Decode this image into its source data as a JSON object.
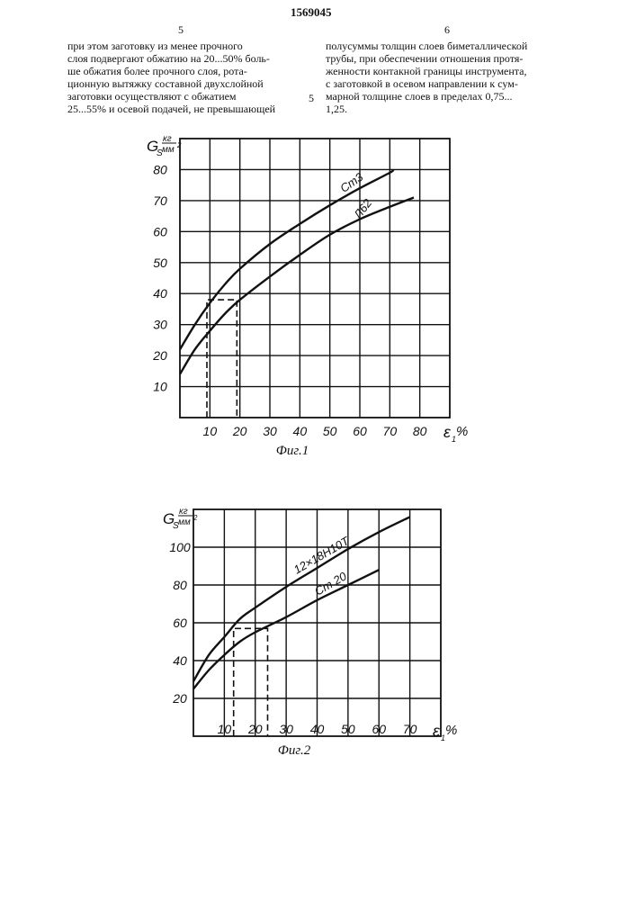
{
  "header": {
    "page_left": "5",
    "patent_number": "1569045",
    "page_right": "6"
  },
  "text": {
    "left_column": [
      "при этом заготовку из менее прочного",
      "слоя подвергают обжатию на 20...50% боль-",
      "ше обжатия более прочного слоя, рота-",
      "ционную вытяжку составной двухслойной",
      "заготовки осуществляют с обжатием",
      "25...55% и осевой подачей, не превышающей"
    ],
    "right_column": [
      "полусуммы толщин слоев биметаллической",
      "трубы, при обеспечении отношения протя-",
      "женности контакной границы инструмента,",
      "с заготовкой в осевом направлении к сум-",
      "марной толщине слоев в пределах 0,75...",
      "1,25."
    ],
    "line_number": "5"
  },
  "chart_data": [
    {
      "type": "line",
      "title": "Фиг.1",
      "ylabel": "G_s, кг/мм²",
      "xlabel": "ε, %",
      "xlim": [
        0,
        90
      ],
      "ylim": [
        0,
        90
      ],
      "grid": true,
      "x_ticks": [
        10,
        20,
        30,
        40,
        50,
        60,
        70,
        80
      ],
      "y_ticks": [
        10,
        20,
        30,
        40,
        50,
        60,
        70,
        80
      ],
      "series": [
        {
          "name": "Ст3",
          "x": [
            0,
            5,
            10,
            15,
            20,
            30,
            40,
            50,
            60,
            70,
            71
          ],
          "y": [
            22,
            30,
            37,
            43,
            48,
            56,
            62.5,
            68.5,
            74,
            79,
            80
          ]
        },
        {
          "name": "Л62",
          "x": [
            0,
            5,
            10,
            15,
            20,
            30,
            40,
            50,
            60,
            70,
            78
          ],
          "y": [
            14,
            22,
            28,
            33.5,
            38,
            45.5,
            52.5,
            59,
            64,
            68,
            71
          ]
        }
      ],
      "guide": {
        "x": [
          9,
          19
        ],
        "y": 38
      },
      "label_text": {
        "y_symbol": "G",
        "y_sub": "S",
        "y_unit_num": "кг",
        "y_unit_den": "мм",
        "y_unit_exp": "2",
        "x_symbol": "ε",
        "x_sub": "1",
        "x_unit": "%"
      }
    },
    {
      "type": "line",
      "title": "Фиг.2",
      "ylabel": "G_s, кг/мм²",
      "xlabel": "ε, %",
      "xlim": [
        0,
        80
      ],
      "ylim": [
        0,
        120
      ],
      "grid": true,
      "x_ticks": [
        10,
        20,
        30,
        40,
        50,
        60,
        70
      ],
      "y_ticks": [
        20,
        40,
        60,
        80,
        100
      ],
      "series": [
        {
          "name": "12×18Н10Т",
          "x": [
            0,
            5,
            10,
            15,
            20,
            30,
            40,
            50,
            60,
            70
          ],
          "y": [
            29,
            43,
            52.5,
            62,
            68,
            79,
            89,
            99,
            108,
            116
          ]
        },
        {
          "name": "Ст 20",
          "x": [
            0,
            5,
            10,
            15,
            20,
            30,
            40,
            50,
            60
          ],
          "y": [
            25,
            35,
            43,
            50,
            55,
            63,
            72,
            80,
            88
          ]
        }
      ],
      "guide": {
        "x": [
          13,
          24
        ],
        "y": 57
      },
      "label_text": {
        "y_symbol": "G",
        "y_sub": "S",
        "y_unit_num": "кг",
        "y_unit_den": "мм",
        "y_unit_exp": "2",
        "x_symbol": "ε",
        "x_sub": "1",
        "x_unit": "%"
      }
    }
  ]
}
